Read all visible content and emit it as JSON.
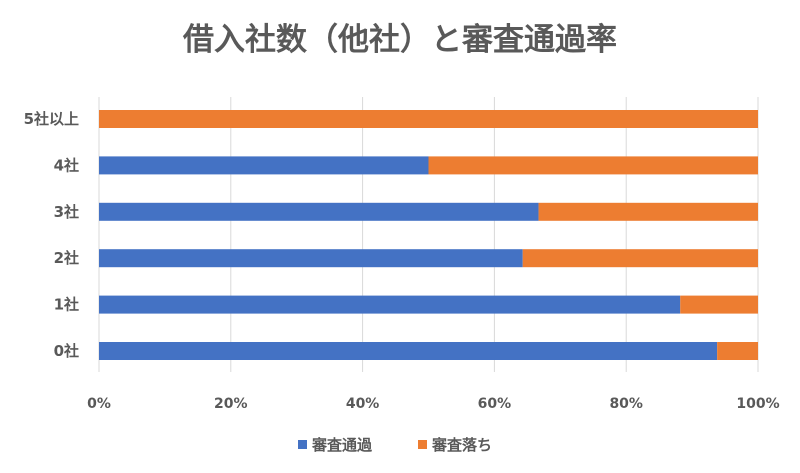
{
  "chart_data": {
    "type": "bar",
    "orientation": "horizontal",
    "stacked": "percent",
    "title": "借入社数（他社）と審査通過率",
    "categories": [
      "5社以上",
      "4社",
      "3社",
      "2社",
      "1社",
      "0社"
    ],
    "series": [
      {
        "name": "審査通過",
        "color": "#4472c4",
        "values": [
          0,
          50,
          66.7,
          64.3,
          88.2,
          93.8
        ]
      },
      {
        "name": "審査落ち",
        "color": "#ed7d31",
        "values": [
          100,
          50,
          33.3,
          35.7,
          11.8,
          6.2
        ]
      }
    ],
    "x_ticks": [
      "0%",
      "20%",
      "40%",
      "60%",
      "80%",
      "100%"
    ],
    "xlim": [
      0,
      100
    ],
    "grid": true,
    "legend": "bottom"
  }
}
